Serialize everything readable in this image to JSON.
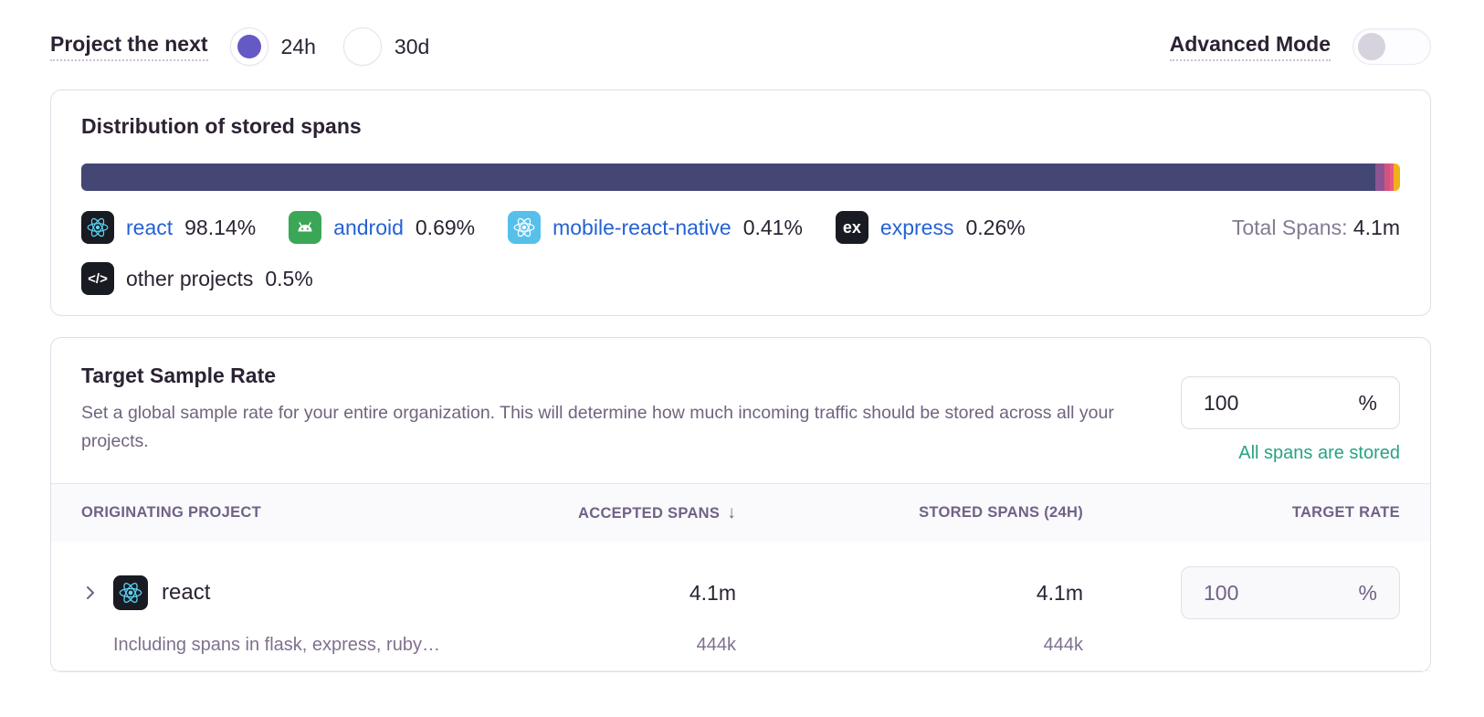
{
  "controls": {
    "project_label": "Project the next",
    "radios": [
      {
        "label": "24h",
        "selected": true
      },
      {
        "label": "30d",
        "selected": false
      }
    ],
    "advanced_mode_label": "Advanced Mode",
    "advanced_mode_on": false,
    "accent_color": "#6559c5"
  },
  "distribution": {
    "title": "Distribution of stored spans",
    "total_label": "Total Spans:",
    "total_value": "4.1m",
    "segments": [
      {
        "key": "react",
        "name": "react",
        "pct_label": "98.14%",
        "value": 98.14,
        "color": "#444674",
        "link": true
      },
      {
        "key": "android",
        "name": "android",
        "pct_label": "0.69%",
        "value": 0.69,
        "color": "#8d5494",
        "link": true
      },
      {
        "key": "mobile-react-native",
        "name": "mobile-react-native",
        "pct_label": "0.41%",
        "value": 0.41,
        "color": "#d4537e",
        "link": true
      },
      {
        "key": "express",
        "name": "express",
        "pct_label": "0.26%",
        "value": 0.26,
        "color": "#e8598a",
        "link": true
      },
      {
        "key": "other-projects",
        "name": "other projects",
        "pct_label": "0.5%",
        "value": 0.5,
        "color": "#efb118",
        "link": false
      }
    ]
  },
  "chart_data": {
    "type": "bar",
    "title": "Distribution of stored spans",
    "categories": [
      "react",
      "android",
      "mobile-react-native",
      "express",
      "other projects"
    ],
    "values": [
      98.14,
      0.69,
      0.41,
      0.26,
      0.5
    ],
    "unit": "%",
    "total_label": "Total Spans: 4.1m",
    "colors": [
      "#444674",
      "#8d5494",
      "#d4537e",
      "#e8598a",
      "#efb118"
    ]
  },
  "sample_rate": {
    "title": "Target Sample Rate",
    "description": "Set a global sample rate for your entire organization. This will determine how much incoming traffic should be stored across all your projects.",
    "input_value": "100",
    "input_suffix": "%",
    "status_text": "All spans are stored",
    "status_color": "#28a284"
  },
  "table": {
    "headers": {
      "project": "Originating Project",
      "accepted": "Accepted Spans",
      "accepted_sort": "↓",
      "stored": "Stored Spans (24h)",
      "rate": "Target Rate"
    },
    "rows": [
      {
        "project": "react",
        "accepted": "4.1m",
        "stored": "4.1m",
        "rate_value": "100",
        "rate_suffix": "%",
        "subtext": "Including spans in flask, express, ruby…",
        "sub_accepted": "444k",
        "sub_stored": "444k"
      }
    ]
  }
}
